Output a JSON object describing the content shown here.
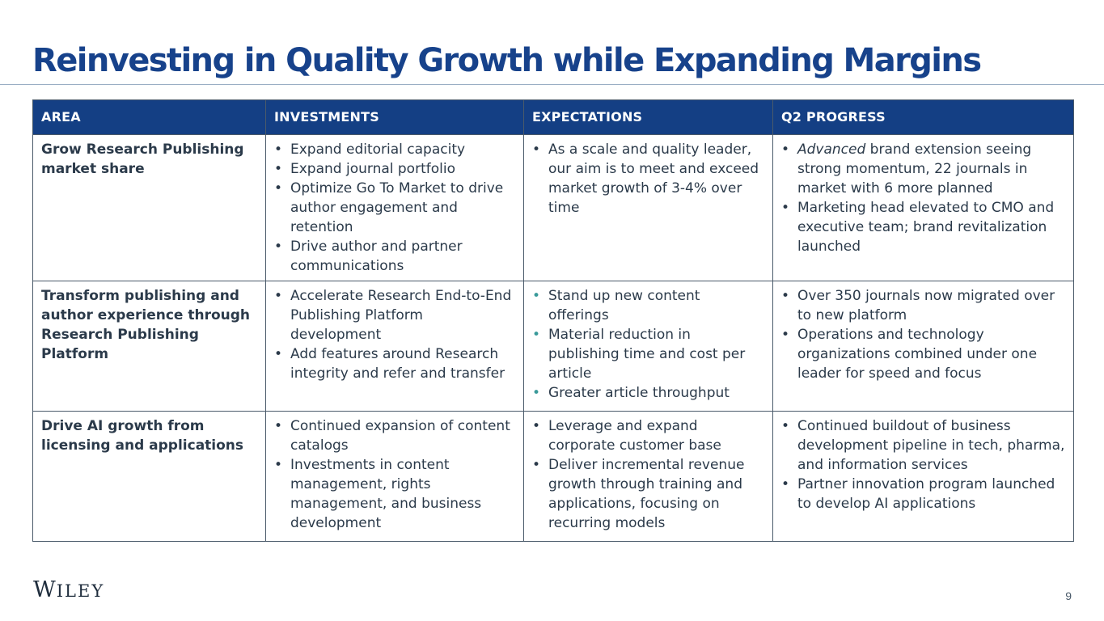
{
  "slide": {
    "title": "Reinvesting in Quality Growth while Expanding Margins",
    "page_number": "9",
    "logo_initial": "W",
    "logo_rest": "ILEY"
  },
  "table": {
    "headers": [
      "AREA",
      "INVESTMENTS",
      "EXPECTATIONS",
      "Q2 PROGRESS"
    ],
    "rows": [
      {
        "area": "Grow Research Publishing market share",
        "investments": [
          "Expand editorial capacity",
          "Expand journal portfolio",
          "Optimize Go To Market to drive author engagement and retention",
          "Drive author and partner communications"
        ],
        "expectations": [
          "As a scale and quality leader, our aim is to meet and exceed market growth of 3-4% over time"
        ],
        "progress_first_em": "Advanced",
        "progress_first_rest": " brand extension seeing strong momentum, 22 journals in market with 6 more planned",
        "progress": [
          "Marketing head elevated to CMO and executive team; brand revitalization launched"
        ]
      },
      {
        "area": "Transform publishing and author experience through Research Publishing Platform",
        "investments": [
          "Accelerate Research End-to-End Publishing Platform development",
          "Add features around Research integrity and refer and transfer"
        ],
        "expectations": [
          "Stand up new content offerings",
          "Material reduction in publishing time and cost per article",
          "Greater article throughput"
        ],
        "progress": [
          "Over 350 journals now migrated over to new platform",
          "Operations and technology organizations combined under one leader for speed and focus"
        ]
      },
      {
        "area": "Drive AI growth from licensing and applications",
        "investments": [
          "Continued expansion of content catalogs",
          "Investments in content management, rights management, and business development"
        ],
        "expectations": [
          "Leverage and expand corporate customer base",
          "Deliver incremental revenue growth through training and applications, focusing on recurring models"
        ],
        "progress": [
          "Continued buildout of business development pipeline in tech, pharma, and information services",
          "Partner innovation program launched to develop AI applications"
        ]
      }
    ]
  }
}
